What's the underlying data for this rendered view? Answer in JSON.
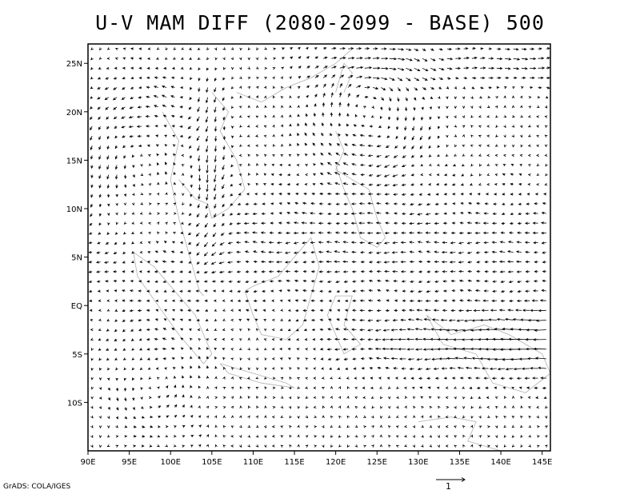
{
  "title": "U-V MAM DIFF (2080-2099 - BASE) 500",
  "credit": "GrADS: COLA/IGES",
  "reference_vector": {
    "label": "1",
    "magnitude": 1
  },
  "map": {
    "lon_range": [
      90,
      146
    ],
    "lat_range": [
      -15,
      27
    ],
    "x_ticks": [
      "90E",
      "95E",
      "100E",
      "105E",
      "110E",
      "115E",
      "120E",
      "125E",
      "130E",
      "135E",
      "140E",
      "145E"
    ],
    "x_tick_values": [
      90,
      95,
      100,
      105,
      110,
      115,
      120,
      125,
      130,
      135,
      140,
      145
    ],
    "y_ticks": [
      "25N",
      "20N",
      "15N",
      "10N",
      "5N",
      "EQ",
      "5S",
      "10S"
    ],
    "y_tick_values": [
      25,
      20,
      15,
      10,
      5,
      0,
      -5,
      -10
    ],
    "field": "wind difference vectors (u,v) at 500 hPa",
    "grid_step_deg": 1
  }
}
